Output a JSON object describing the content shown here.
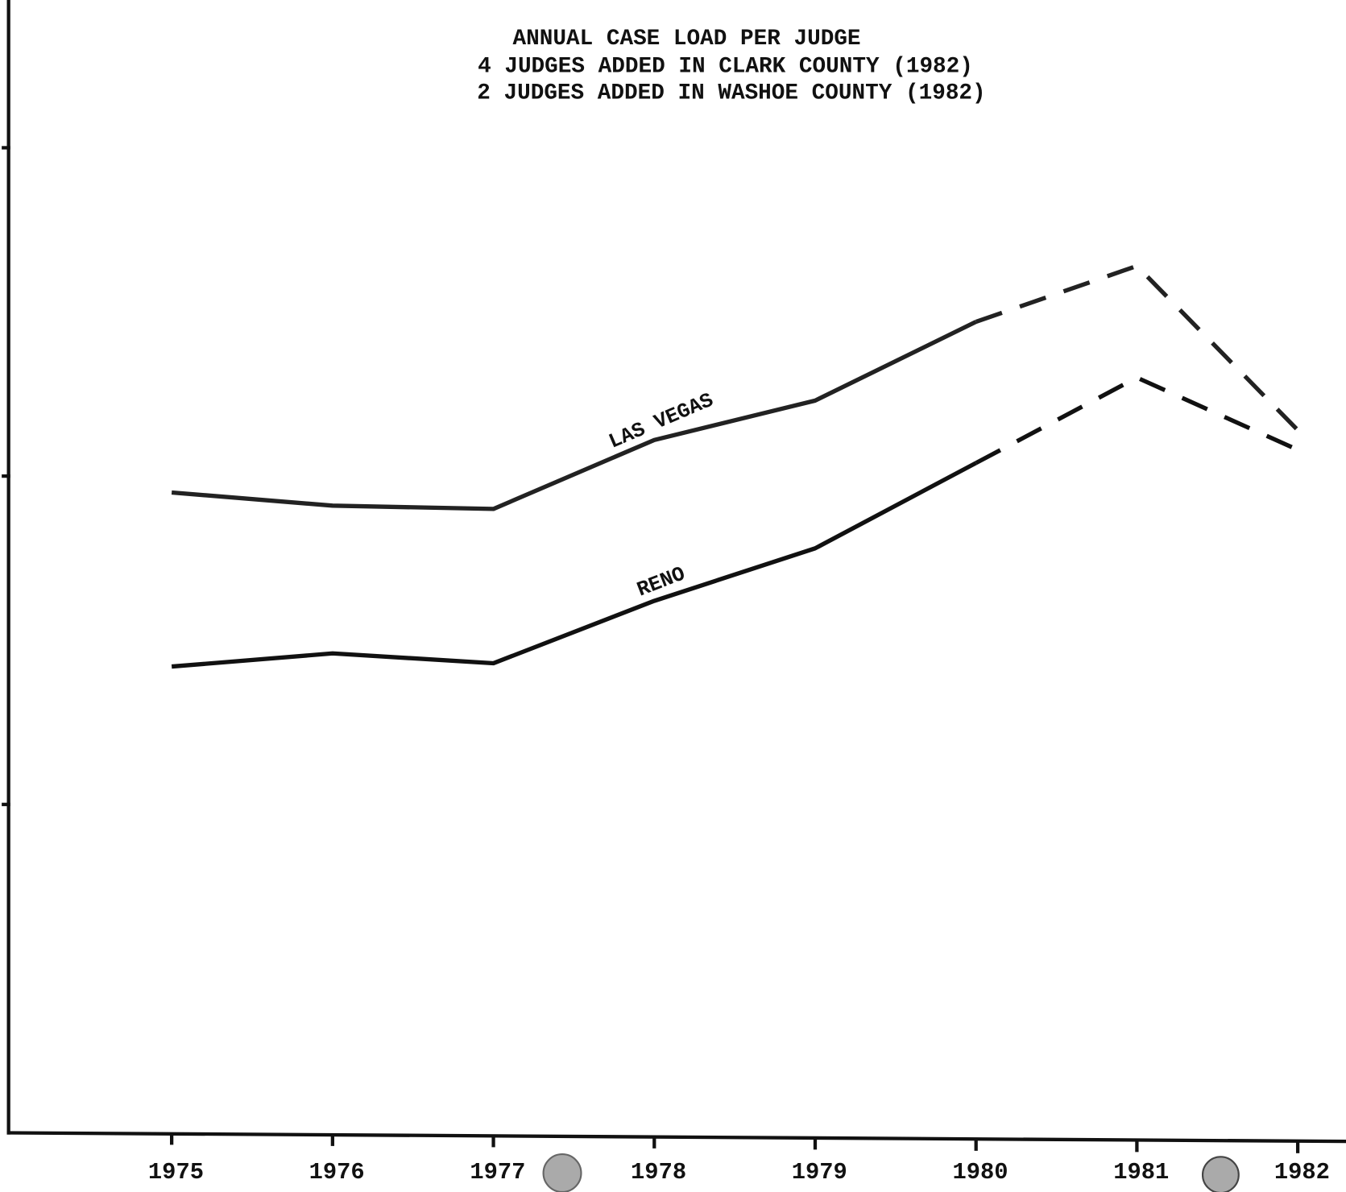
{
  "chart_data": {
    "type": "line",
    "title": "ANNUAL CASE LOAD PER JUDGE",
    "subtitle": [
      "4 JUDGES ADDED IN CLARK COUNTY (1982)",
      "2 JUDGES ADDED IN WASHOE COUNTY (1982)"
    ],
    "categories": [
      "1975",
      "1976",
      "1977",
      "1978",
      "1979",
      "1980",
      "1981",
      "1982"
    ],
    "series": [
      {
        "name": "LAS VEGAS",
        "color": "#222222",
        "dash_from": 5,
        "values": [
          1.95,
          1.91,
          1.9,
          2.11,
          2.23,
          2.47,
          2.64,
          2.14
        ]
      },
      {
        "name": "RENO",
        "color": "#111111",
        "dash_from": 5,
        "values": [
          1.42,
          1.46,
          1.43,
          1.62,
          1.78,
          2.04,
          2.3,
          2.08
        ]
      }
    ],
    "ylim": [
      0,
      3.45
    ],
    "yticks": [
      1,
      2,
      3
    ],
    "grid": false
  }
}
